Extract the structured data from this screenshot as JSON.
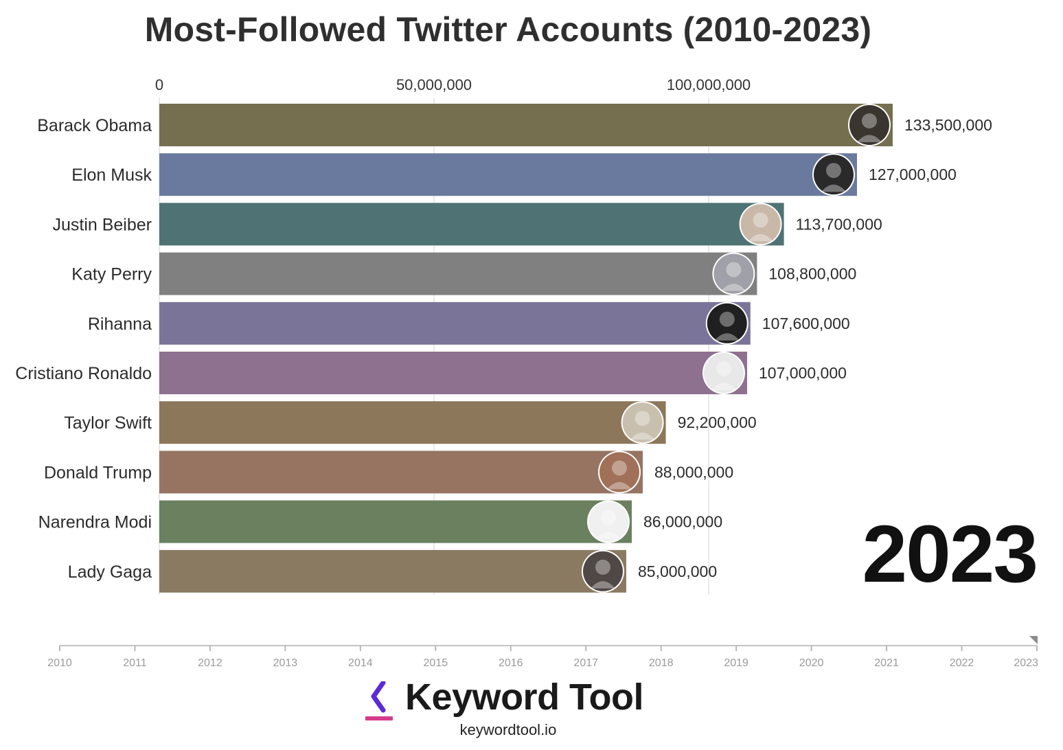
{
  "chart_data": {
    "type": "bar",
    "orientation": "horizontal",
    "title": "Most-Followed Twitter Accounts (2010-2023)",
    "xlim": [
      0,
      133500000
    ],
    "x_ticks": [
      0,
      50000000,
      100000000
    ],
    "x_tick_labels": [
      "0",
      "50,000,000",
      "100,000,000"
    ],
    "grid": true,
    "categories": [
      "Barack Obama",
      "Elon Musk",
      "Justin Beiber",
      "Katy Perry",
      "Rihanna",
      "Cristiano Ronaldo",
      "Taylor Swift",
      "Donald Trump",
      "Narendra Modi",
      "Lady Gaga"
    ],
    "values": [
      133500000,
      127000000,
      113700000,
      108800000,
      107600000,
      107000000,
      92200000,
      88000000,
      86000000,
      85000000
    ],
    "value_labels": [
      "133,500,000",
      "127,000,000",
      "113,700,000",
      "108,800,000",
      "107,600,000",
      "107,000,000",
      "92,200,000",
      "88,000,000",
      "86,000,000",
      "85,000,000"
    ],
    "colors": [
      "#756f50",
      "#6a7a9e",
      "#4f7375",
      "#808080",
      "#7a7598",
      "#8e708f",
      "#8d775a",
      "#977462",
      "#6a805f",
      "#8a7a62"
    ],
    "avatar_colors": [
      "#3b3530",
      "#2a2a2a",
      "#c9b8a8",
      "#a0a0a8",
      "#202020",
      "#e8e8e8",
      "#c8bfae",
      "#a07058",
      "#f0f0f0",
      "#504845"
    ],
    "icons": [
      "avatar-icon",
      "avatar-icon",
      "avatar-icon",
      "avatar-icon",
      "avatar-icon",
      "avatar-icon",
      "avatar-icon",
      "avatar-icon",
      "avatar-icon",
      "avatar-icon"
    ]
  },
  "year": "2023",
  "timeline": {
    "years": [
      "2010",
      "2011",
      "2012",
      "2013",
      "2014",
      "2015",
      "2016",
      "2017",
      "2018",
      "2019",
      "2020",
      "2021",
      "2022",
      "2023"
    ],
    "current": "2023"
  },
  "brand": {
    "name": "Keyword Tool",
    "url": "keywordtool.io",
    "accent_purple": "#5b2bd6",
    "accent_pink": "#d63a8a"
  }
}
